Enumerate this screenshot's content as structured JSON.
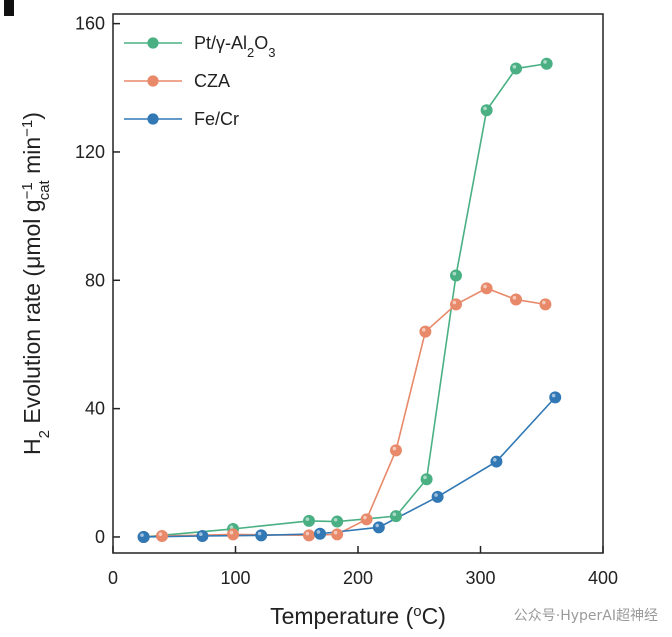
{
  "chart_data": {
    "type": "line",
    "panel_label": "",
    "xlabel": "Temperature (°C)",
    "ylabel": "H₂ Evolution rate (μmol g⁻¹cat min⁻¹)",
    "xlim": [
      0,
      400
    ],
    "ylim": [
      -5,
      163
    ],
    "xticks": [
      0,
      100,
      200,
      300,
      400
    ],
    "yticks": [
      0,
      40,
      80,
      120,
      160
    ],
    "legend_position": "top-left",
    "grid": false,
    "series": [
      {
        "name": "Pt/γ-Al₂O₃",
        "color": "#4ab083",
        "points": [
          [
            25,
            0
          ],
          [
            98,
            2.5
          ],
          [
            160,
            5
          ],
          [
            183,
            4.8
          ],
          [
            231,
            6.5
          ],
          [
            256,
            18
          ],
          [
            280,
            81.5
          ],
          [
            305,
            133
          ],
          [
            329,
            146
          ],
          [
            354,
            147.5
          ]
        ]
      },
      {
        "name": "CZA",
        "color": "#e8896a",
        "points": [
          [
            25,
            0
          ],
          [
            40,
            0.3
          ],
          [
            98,
            0.8
          ],
          [
            160,
            0.5
          ],
          [
            183,
            0.8
          ],
          [
            207,
            5.5
          ],
          [
            231,
            27
          ],
          [
            255,
            64
          ],
          [
            280,
            72.5
          ],
          [
            305,
            77.5
          ],
          [
            329,
            74
          ],
          [
            353,
            72.5
          ]
        ]
      },
      {
        "name": "Fe/Cr",
        "color": "#3178b5",
        "points": [
          [
            25,
            0
          ],
          [
            73,
            0.3
          ],
          [
            121,
            0.5
          ],
          [
            169,
            1
          ],
          [
            217,
            3
          ],
          [
            265,
            12.5
          ],
          [
            313,
            23.5
          ],
          [
            361,
            43.5
          ]
        ]
      }
    ]
  },
  "watermark": "公众号·HyperAI超神经",
  "colors": {
    "axis": "#222222",
    "background": "#ffffff"
  }
}
